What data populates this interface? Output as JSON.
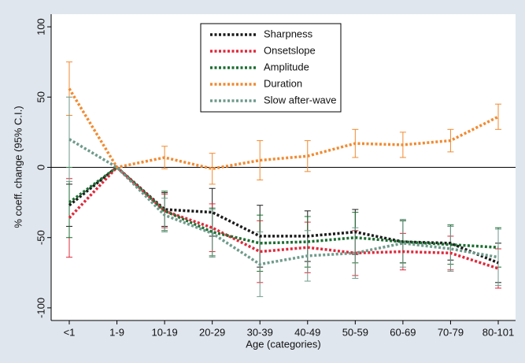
{
  "chart_data": {
    "type": "line",
    "x_label": "Age (categories)",
    "y_label": "% coeff. change (95% C.I.)",
    "categories": [
      "<1",
      "1-9",
      "10-19",
      "20-29",
      "30-39",
      "40-49",
      "50-59",
      "60-69",
      "70-79",
      "80-101"
    ],
    "series": [
      {
        "name": "Sharpness",
        "color": "#1a1a1a",
        "values": [
          -27,
          0,
          -30,
          -32,
          -49,
          -49,
          -46,
          -53,
          -54,
          -68
        ],
        "errors": [
          15,
          0,
          12,
          17,
          22,
          18,
          16,
          15,
          12,
          14
        ]
      },
      {
        "name": "Onsetslope",
        "color": "#e0283a",
        "values": [
          -36,
          0,
          -31,
          -43,
          -60,
          -57,
          -61,
          -60,
          -61,
          -72
        ],
        "errors": [
          28,
          0,
          12,
          17,
          22,
          18,
          16,
          13,
          12,
          14
        ]
      },
      {
        "name": "Amplitude",
        "color": "#1b6e30",
        "values": [
          -25,
          0,
          -31,
          -46,
          -54,
          -53,
          -50,
          -53,
          -55,
          -57
        ],
        "errors": [
          25,
          0,
          14,
          17,
          20,
          18,
          18,
          15,
          14,
          14
        ]
      },
      {
        "name": "Duration",
        "color": "#f28a30",
        "values": [
          56,
          0,
          7,
          -1,
          5,
          8,
          17,
          16,
          19,
          36
        ],
        "errors": [
          19,
          0,
          8,
          11,
          14,
          11,
          10,
          9,
          8,
          9
        ]
      },
      {
        "name": "Slow after-wave",
        "color": "#6e9a8c",
        "values": [
          20,
          0,
          -34,
          -47,
          -69,
          -63,
          -61,
          -54,
          -58,
          -64
        ],
        "errors": [
          30,
          0,
          12,
          17,
          23,
          18,
          18,
          17,
          16,
          20
        ]
      }
    ],
    "ylim": [
      -109,
      109
    ],
    "yticks": [
      -100,
      -50,
      0,
      50,
      100
    ],
    "zero_line": true,
    "legend": "top"
  }
}
